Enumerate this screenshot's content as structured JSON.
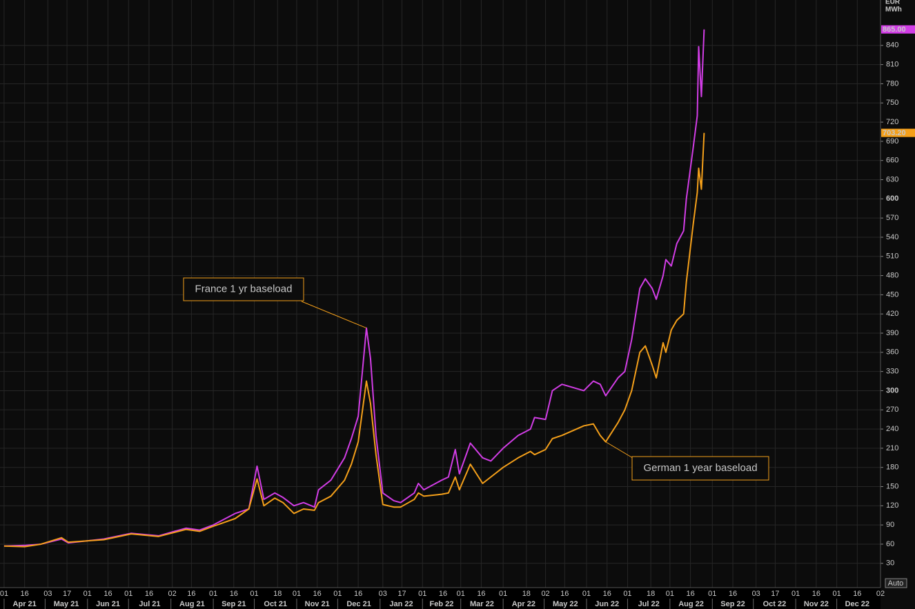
{
  "chart_data": {
    "type": "line",
    "x": [
      "2021-04-01",
      "2021-04-16",
      "2021-04-28",
      "2021-05-13",
      "2021-05-18",
      "2021-06-13",
      "2021-07-03",
      "2021-07-23",
      "2021-08-12",
      "2021-08-22",
      "2021-09-01",
      "2021-09-17",
      "2021-09-27",
      "2021-10-03",
      "2021-10-08",
      "2021-10-16",
      "2021-10-22",
      "2021-10-30",
      "2021-11-06",
      "2021-11-14",
      "2021-11-17",
      "2021-11-26",
      "2021-12-06",
      "2021-12-11",
      "2021-12-16",
      "2021-12-22",
      "2021-12-25",
      "2021-12-29",
      "2022-01-03",
      "2022-01-11",
      "2022-01-16",
      "2022-01-26",
      "2022-01-29",
      "2022-02-02",
      "2022-02-15",
      "2022-02-20",
      "2022-02-25",
      "2022-02-28",
      "2022-03-08",
      "2022-03-17",
      "2022-03-23",
      "2022-04-01",
      "2022-04-12",
      "2022-04-21",
      "2022-04-24",
      "2022-05-02",
      "2022-05-07",
      "2022-05-14",
      "2022-05-30",
      "2022-06-06",
      "2022-06-11",
      "2022-06-15",
      "2022-06-24",
      "2022-06-29",
      "2022-07-04",
      "2022-07-10",
      "2022-07-14",
      "2022-07-19",
      "2022-07-22",
      "2022-07-27",
      "2022-07-29",
      "2022-08-02",
      "2022-08-06",
      "2022-08-11",
      "2022-08-13",
      "2022-08-18",
      "2022-08-21",
      "2022-08-22",
      "2022-08-24",
      "2022-08-26"
    ],
    "series": [
      {
        "name": "France 1 yr baseload",
        "color": "#d23de6",
        "values": [
          57,
          58,
          60,
          68,
          62,
          68,
          77,
          73,
          85,
          82,
          90,
          108,
          115,
          182,
          130,
          140,
          133,
          120,
          125,
          118,
          145,
          160,
          195,
          225,
          260,
          398,
          350,
          230,
          140,
          128,
          125,
          140,
          155,
          145,
          160,
          165,
          208,
          170,
          218,
          195,
          190,
          210,
          230,
          240,
          258,
          255,
          300,
          310,
          300,
          315,
          310,
          292,
          320,
          330,
          380,
          460,
          475,
          460,
          443,
          480,
          505,
          495,
          530,
          550,
          600,
          680,
          730,
          838,
          760,
          865
        ],
        "value_labels": [
          null,
          null,
          null,
          null,
          null,
          null,
          null,
          null,
          null,
          null,
          null,
          null,
          null,
          null,
          null,
          null,
          null,
          null,
          null,
          null,
          null,
          null,
          null,
          null,
          null,
          null,
          null,
          null,
          null,
          null,
          null,
          null,
          null,
          null,
          null,
          null,
          null,
          null,
          null,
          null,
          null,
          null,
          null,
          null,
          null,
          null,
          null,
          null,
          null,
          null,
          null,
          null,
          null,
          null,
          null,
          null,
          null,
          null,
          null,
          null,
          null,
          null,
          null,
          null,
          null,
          null,
          null,
          null,
          null,
          "865.00"
        ]
      },
      {
        "name": "German 1 year baseload",
        "color": "#f5a01a",
        "values": [
          57,
          56,
          60,
          70,
          63,
          67,
          76,
          72,
          83,
          80,
          88,
          100,
          115,
          162,
          120,
          132,
          125,
          108,
          115,
          113,
          125,
          135,
          160,
          185,
          220,
          315,
          280,
          200,
          122,
          118,
          118,
          130,
          140,
          135,
          138,
          140,
          165,
          145,
          185,
          155,
          165,
          180,
          195,
          205,
          200,
          208,
          225,
          230,
          245,
          248,
          230,
          220,
          250,
          270,
          300,
          360,
          370,
          340,
          320,
          375,
          360,
          395,
          410,
          420,
          470,
          560,
          610,
          648,
          615,
          703.2
        ],
        "value_labels": [
          null,
          null,
          null,
          null,
          null,
          null,
          null,
          null,
          null,
          null,
          null,
          null,
          null,
          null,
          null,
          null,
          null,
          null,
          null,
          null,
          null,
          null,
          null,
          null,
          null,
          null,
          null,
          null,
          null,
          null,
          null,
          null,
          null,
          null,
          null,
          null,
          null,
          null,
          null,
          null,
          null,
          null,
          null,
          null,
          null,
          null,
          null,
          null,
          null,
          null,
          null,
          null,
          null,
          null,
          null,
          null,
          null,
          null,
          null,
          null,
          null,
          null,
          null,
          null,
          null,
          null,
          null,
          null,
          null,
          "703.20"
        ]
      }
    ],
    "xlim": [
      "2021-03-29",
      "2023-01-02"
    ],
    "xticks": [
      {
        "value": "2021-04-01",
        "label": "01"
      },
      {
        "value": "2021-04-16",
        "label": "16"
      },
      {
        "value": "2021-05-03",
        "label": "03"
      },
      {
        "value": "2021-05-17",
        "label": "17"
      },
      {
        "value": "2021-06-01",
        "label": "01"
      },
      {
        "value": "2021-06-16",
        "label": "16"
      },
      {
        "value": "2021-07-01",
        "label": "01"
      },
      {
        "value": "2021-07-16",
        "label": "16"
      },
      {
        "value": "2021-08-02",
        "label": "02"
      },
      {
        "value": "2021-08-16",
        "label": "16"
      },
      {
        "value": "2021-09-01",
        "label": "01"
      },
      {
        "value": "2021-09-16",
        "label": "16"
      },
      {
        "value": "2021-10-01",
        "label": "01"
      },
      {
        "value": "2021-10-18",
        "label": "18"
      },
      {
        "value": "2021-11-01",
        "label": "01"
      },
      {
        "value": "2021-11-16",
        "label": "16"
      },
      {
        "value": "2021-12-01",
        "label": "01"
      },
      {
        "value": "2021-12-16",
        "label": "16"
      },
      {
        "value": "2022-01-03",
        "label": "03"
      },
      {
        "value": "2022-01-17",
        "label": "17"
      },
      {
        "value": "2022-02-01",
        "label": "01"
      },
      {
        "value": "2022-02-16",
        "label": "16"
      },
      {
        "value": "2022-03-01",
        "label": "01"
      },
      {
        "value": "2022-03-16",
        "label": "16"
      },
      {
        "value": "2022-04-01",
        "label": "01"
      },
      {
        "value": "2022-04-18",
        "label": "18"
      },
      {
        "value": "2022-05-02",
        "label": "02"
      },
      {
        "value": "2022-05-16",
        "label": "16"
      },
      {
        "value": "2022-06-01",
        "label": "01"
      },
      {
        "value": "2022-06-16",
        "label": "16"
      },
      {
        "value": "2022-07-01",
        "label": "01"
      },
      {
        "value": "2022-07-18",
        "label": "18"
      },
      {
        "value": "2022-08-01",
        "label": "01"
      },
      {
        "value": "2022-08-16",
        "label": "16"
      },
      {
        "value": "2022-09-01",
        "label": "01"
      },
      {
        "value": "2022-09-16",
        "label": "16"
      },
      {
        "value": "2022-10-03",
        "label": "03"
      },
      {
        "value": "2022-10-17",
        "label": "17"
      },
      {
        "value": "2022-11-01",
        "label": "01"
      },
      {
        "value": "2022-11-16",
        "label": "16"
      },
      {
        "value": "2022-12-01",
        "label": "01"
      },
      {
        "value": "2022-12-16",
        "label": "16"
      },
      {
        "value": "2023-01-02",
        "label": "02"
      }
    ],
    "month_ticks": [
      {
        "value": "2021-04-01",
        "label": "Apr 21"
      },
      {
        "value": "2021-05-01",
        "label": "May 21"
      },
      {
        "value": "2021-06-01",
        "label": "Jun 21"
      },
      {
        "value": "2021-07-01",
        "label": "Jul 21"
      },
      {
        "value": "2021-08-01",
        "label": "Aug 21"
      },
      {
        "value": "2021-09-01",
        "label": "Sep 21"
      },
      {
        "value": "2021-10-01",
        "label": "Oct 21"
      },
      {
        "value": "2021-11-01",
        "label": "Nov 21"
      },
      {
        "value": "2021-12-01",
        "label": "Dec 21"
      },
      {
        "value": "2022-01-01",
        "label": "Jan 22"
      },
      {
        "value": "2022-02-01",
        "label": "Feb 22"
      },
      {
        "value": "2022-03-01",
        "label": "Mar 22"
      },
      {
        "value": "2022-04-01",
        "label": "Apr 22"
      },
      {
        "value": "2022-05-01",
        "label": "May 22"
      },
      {
        "value": "2022-06-01",
        "label": "Jun 22"
      },
      {
        "value": "2022-07-01",
        "label": "Jul 22"
      },
      {
        "value": "2022-08-01",
        "label": "Aug 22"
      },
      {
        "value": "2022-09-01",
        "label": "Sep 22"
      },
      {
        "value": "2022-10-01",
        "label": "Oct 22"
      },
      {
        "value": "2022-11-01",
        "label": "Nov 22"
      },
      {
        "value": "2022-12-01",
        "label": "Dec 22"
      }
    ],
    "ylim": [
      -8,
      911
    ],
    "yticks": [
      30,
      60,
      90,
      120,
      150,
      180,
      210,
      240,
      270,
      300,
      330,
      360,
      390,
      420,
      450,
      480,
      510,
      540,
      570,
      600,
      630,
      660,
      690,
      720,
      750,
      780,
      810,
      840
    ],
    "major_ytick_step": 300,
    "yunit": [
      "EUR",
      "MWh"
    ],
    "grid": true,
    "auto_button": "Auto"
  }
}
